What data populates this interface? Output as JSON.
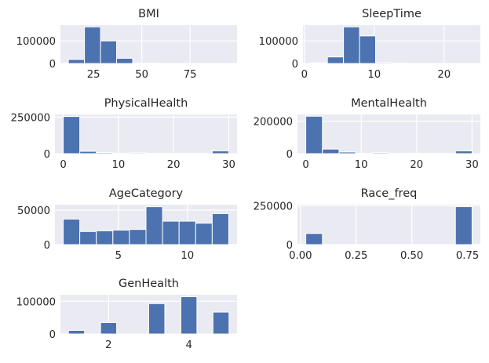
{
  "colors": {
    "panel_background": "#eaeaf2",
    "grid": "#ffffff",
    "bar": "#4c72b0",
    "text": "#262626"
  },
  "chart_data": [
    {
      "type": "bar",
      "title": "BMI",
      "bin_edges": [
        12.02,
        20.33,
        28.65,
        36.96,
        45.28,
        53.59,
        61.9,
        70.22,
        78.53,
        86.85,
        95.16
      ],
      "values": [
        18000,
        162000,
        100000,
        23000,
        2000,
        500,
        200,
        100,
        50,
        30
      ],
      "xticks": [
        25,
        50,
        75
      ],
      "xtick_labels": [
        "25",
        "50",
        "75"
      ],
      "yticks": [
        0,
        100000
      ],
      "ytick_labels": [
        "0",
        "100000"
      ],
      "xlim": [
        7.9,
        99.3
      ],
      "ylim": [
        0,
        170000
      ],
      "grid": true
    },
    {
      "type": "bar",
      "title": "SleepTime",
      "bin_edges": [
        1,
        3.3,
        5.6,
        7.9,
        10.2,
        12.5,
        14.8,
        17.1,
        19.4,
        21.7,
        24
      ],
      "values": [
        3000,
        29000,
        162000,
        122000,
        4000,
        1000,
        300,
        200,
        100,
        50
      ],
      "xticks": [
        0,
        10,
        20
      ],
      "xtick_labels": [
        "0",
        "10",
        "20"
      ],
      "yticks": [
        0,
        100000
      ],
      "ytick_labels": [
        "0",
        "100000"
      ],
      "xlim": [
        -0.2,
        25.2
      ],
      "ylim": [
        0,
        170000
      ],
      "grid": true
    },
    {
      "type": "bar",
      "title": "PhysicalHealth",
      "bin_edges": [
        0,
        3,
        6,
        9,
        12,
        15,
        18,
        21,
        24,
        27,
        30
      ],
      "values": [
        254000,
        16000,
        7000,
        3000,
        6000,
        2000,
        1000,
        1000,
        1000,
        19000
      ],
      "xticks": [
        0,
        10,
        20,
        30
      ],
      "xtick_labels": [
        "0",
        "10",
        "20",
        "30"
      ],
      "yticks": [
        0,
        250000
      ],
      "ytick_labels": [
        "0",
        "250000"
      ],
      "xlim": [
        -1.5,
        31.5
      ],
      "ylim": [
        0,
        268000
      ],
      "grid": true
    },
    {
      "type": "bar",
      "title": "MentalHealth",
      "bin_edges": [
        0,
        3,
        6,
        9,
        12,
        15,
        18,
        21,
        24,
        27,
        30
      ],
      "values": [
        230000,
        28000,
        10000,
        2000,
        6000,
        1000,
        3000,
        2000,
        1000,
        17000
      ],
      "xticks": [
        0,
        10,
        20,
        30
      ],
      "xtick_labels": [
        "0",
        "10",
        "20",
        "30"
      ],
      "yticks": [
        0,
        200000
      ],
      "ytick_labels": [
        "0",
        "200000"
      ],
      "xlim": [
        -1.5,
        31.5
      ],
      "ylim": [
        0,
        241000
      ],
      "grid": true
    },
    {
      "type": "bar",
      "title": "AgeCategory",
      "bin_edges": [
        1,
        2.2,
        3.4,
        4.6,
        5.8,
        7,
        8.2,
        9.4,
        10.6,
        11.8,
        13
      ],
      "values": [
        37000,
        19000,
        20000,
        21000,
        22000,
        55000,
        34000,
        34000,
        31000,
        45000
      ],
      "xticks": [
        5,
        10
      ],
      "xtick_labels": [
        "5",
        "10"
      ],
      "yticks": [
        0,
        50000
      ],
      "ytick_labels": [
        "0",
        "50000"
      ],
      "xlim": [
        0.4,
        13.6
      ],
      "ylim": [
        0,
        58000
      ],
      "grid": true
    },
    {
      "type": "bar",
      "title": "Race_freq",
      "bin_edges": [
        0.0238,
        0.0985,
        0.1732,
        0.2478,
        0.3225,
        0.3972,
        0.4719,
        0.5466,
        0.6212,
        0.6959,
        0.7706
      ],
      "values": [
        72000,
        0,
        0,
        0,
        0,
        0,
        0,
        0,
        0,
        245000
      ],
      "xticks": [
        0,
        0.25,
        0.5,
        0.75
      ],
      "xtick_labels": [
        "0.00",
        "0.25",
        "0.50",
        "0.75"
      ],
      "yticks": [
        0,
        250000
      ],
      "ytick_labels": [
        "0",
        "250000"
      ],
      "xlim": [
        -0.0136,
        0.808
      ],
      "ylim": [
        0,
        258000
      ],
      "grid": true
    },
    {
      "type": "bar",
      "title": "GenHealth",
      "bin_edges": [
        1,
        1.4,
        1.8,
        2.2,
        2.6,
        3,
        3.4,
        3.8,
        4.2,
        4.6,
        5
      ],
      "values": [
        11000,
        0,
        35000,
        0,
        0,
        93000,
        0,
        114000,
        0,
        67000
      ],
      "xticks": [
        2,
        4
      ],
      "xtick_labels": [
        "2",
        "4"
      ],
      "yticks": [
        0,
        100000
      ],
      "ytick_labels": [
        "0",
        "100000"
      ],
      "xlim": [
        0.8,
        5.2
      ],
      "ylim": [
        0,
        120000
      ],
      "grid": true
    }
  ]
}
